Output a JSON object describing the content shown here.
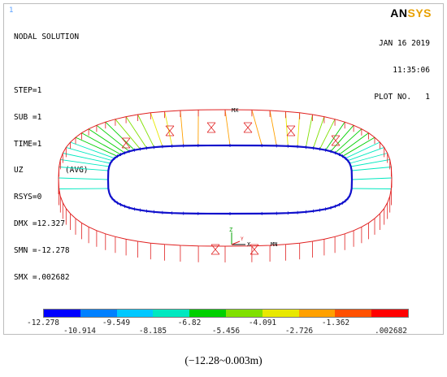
{
  "panel_number": "1",
  "logo": {
    "an": "AN",
    "sys": "SYS"
  },
  "info_lines": [
    "NODAL SOLUTION",
    "",
    "STEP=1",
    "SUB =1",
    "TIME=1",
    "UZ         (AVG)",
    "RSYS=0",
    "DMX =12.327",
    "SMN =-12.278",
    "SMX =.002682"
  ],
  "date_lines": [
    "JAN 16 2019",
    "11:35:06",
    "PLOT NO.   1"
  ],
  "model_markers": {
    "mx": "MX",
    "mn": "MN",
    "axis_x": "X",
    "axis_y": "Y",
    "axis_z": "Z"
  },
  "legend": {
    "colors": [
      "#0000ff",
      "#0080ff",
      "#00c8ff",
      "#00e8c0",
      "#00d000",
      "#80e000",
      "#e8e800",
      "#ffa000",
      "#ff5000",
      "#ff0000"
    ],
    "top_labels": [
      "-12.278",
      "-9.549",
      "-6.82",
      "-4.091",
      "-1.362"
    ],
    "bottom_labels": [
      "-10.914",
      "-8.185",
      "-5.456",
      "-2.726",
      ".002682"
    ]
  },
  "caption": "(−12.28~0.003m)"
}
